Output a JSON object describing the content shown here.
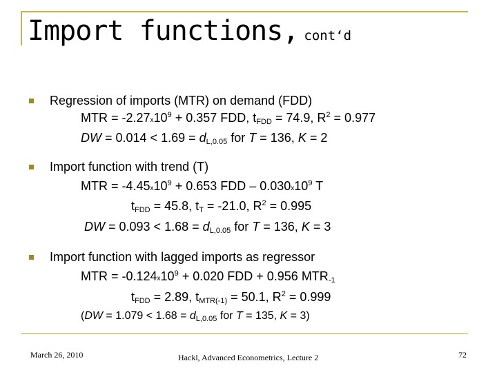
{
  "title": {
    "main": "Import functions,",
    "sub": "cont‘d"
  },
  "items": [
    {
      "heading": "Regression of imports (MTR) on demand (FDD)",
      "l1": {
        "a": "MTR = -2.27",
        "x": "x",
        "b": "10",
        "e": "9",
        "c": " + 0.357 FDD, t",
        "s": "FDD",
        "d": " = 74.9, R",
        "r": "2",
        "f": " = 0.977"
      },
      "l2": {
        "dw": "DW",
        "a": " = 0.014 < 1.69 = ",
        "d": "d",
        "s": "L,0.05",
        "b": " for ",
        "t": "T",
        "c": " = 136, ",
        "k": "K",
        "e": " = 2"
      }
    },
    {
      "heading": "Import function with trend (T)",
      "l1": {
        "a": "MTR = -4.45",
        "x": "x",
        "b": "10",
        "e": "9",
        "c": " + 0.653 FDD – 0.030",
        "x2": "x",
        "b2": "10",
        "e2": "9",
        "d": " T"
      },
      "l2": {
        "a": "t",
        "s1": "FDD",
        "b": " = 45.8, t",
        "s2": "T",
        "c": " = -21.0, R",
        "r": "2",
        "d": " = 0.995"
      },
      "l3": {
        "dw": "DW",
        "a": " = 0.093 < 1.68 = ",
        "d": "d",
        "s": "L,0.05",
        "b": " for ",
        "t": "T",
        "c": " = 136, ",
        "k": "K",
        "e": " = 3"
      }
    },
    {
      "heading": "Import function with lagged imports as regressor",
      "l1": {
        "a": "MTR = -0.124",
        "x": "x",
        "b": "10",
        "e": "9",
        "c": " + 0.020 FDD + 0.956 MTR",
        "s": "-1"
      },
      "l2": {
        "a": "t",
        "s1": "FDD",
        "b": " = 2.89, t",
        "s2": "MTR(-1)",
        "c": " = 50.1, R",
        "r": "2",
        "d": " = 0.999"
      },
      "l3": {
        "open": "(",
        "dw": "DW",
        "a": " = 1.079 < 1.68 = ",
        "d": "d",
        "s": "L,0.05",
        "b": " for ",
        "t": "T",
        "c": " = 135, ",
        "k": "K",
        "e": " = 3)"
      }
    }
  ],
  "footer": {
    "date": "March 26, 2010",
    "center": "Hackl, Advanced Econometrics, Lecture 2",
    "page": "72"
  }
}
